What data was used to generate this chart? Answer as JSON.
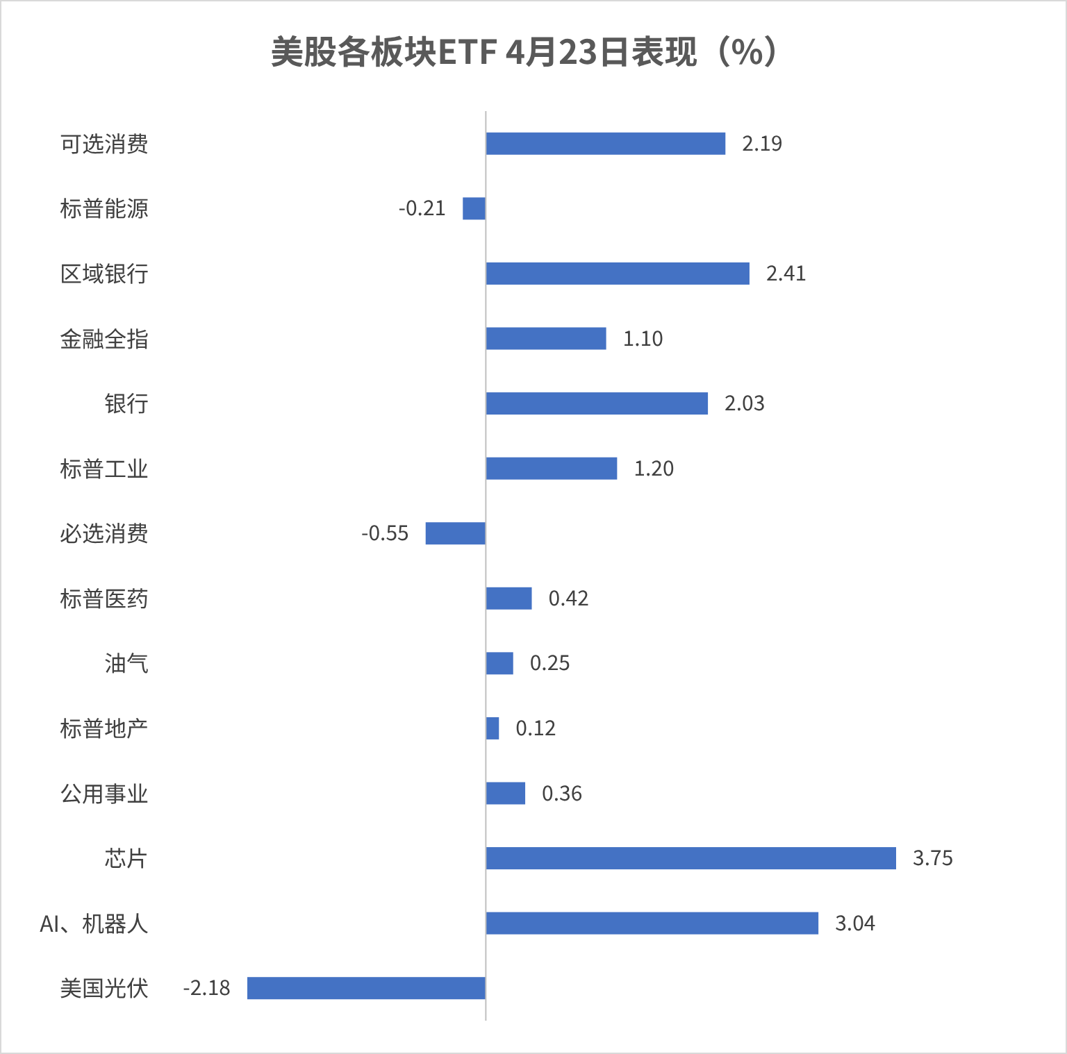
{
  "chart_data": {
    "type": "bar",
    "orientation": "horizontal",
    "title": "美股各板块ETF  4月23日表现（%）",
    "categories": [
      "可选消费",
      "标普能源",
      "区域银行",
      "金融全指",
      "银行",
      "标普工业",
      "必选消费",
      "标普医药",
      "油气",
      "标普地产",
      "公用事业",
      "芯片",
      "AI、机器人",
      "美国光伏"
    ],
    "values": [
      2.19,
      -0.21,
      2.41,
      1.1,
      2.03,
      1.2,
      -0.55,
      0.42,
      0.25,
      0.12,
      0.36,
      3.75,
      3.04,
      -2.18
    ],
    "value_labels": [
      "2.19",
      "-0.21",
      "2.41",
      "1.10",
      "2.03",
      "1.20",
      "-0.55",
      "0.42",
      "0.25",
      "0.12",
      "0.36",
      "3.75",
      "3.04",
      "-2.18"
    ],
    "color": "#4472c4"
  }
}
